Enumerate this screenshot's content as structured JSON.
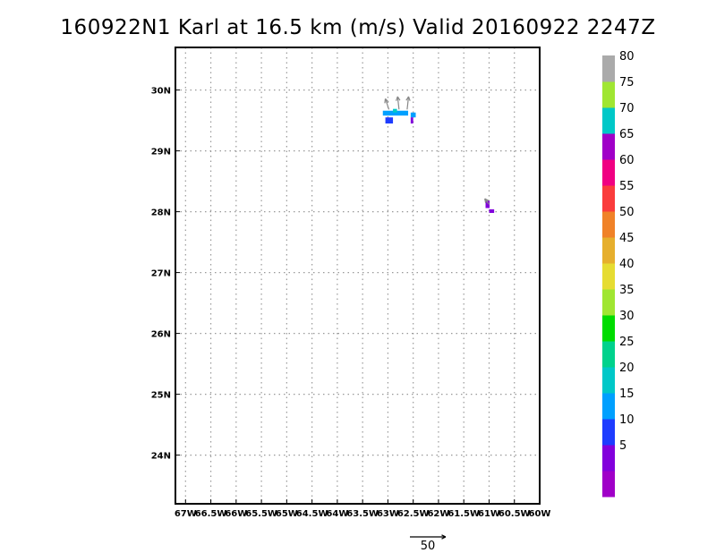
{
  "chart_data": {
    "type": "heatmap",
    "title": "160922N1 Karl at 16.5 km (m/s) Valid 20160922  2247Z",
    "xlim": [
      -67.2,
      -60.0
    ],
    "ylim": [
      23.2,
      30.7
    ],
    "x_ticks": [
      {
        "value": -67.0,
        "label": "67W"
      },
      {
        "value": -66.5,
        "label": "66.5W"
      },
      {
        "value": -66.0,
        "label": "66W"
      },
      {
        "value": -65.5,
        "label": "65.5W"
      },
      {
        "value": -65.0,
        "label": "65W"
      },
      {
        "value": -64.5,
        "label": "64.5W"
      },
      {
        "value": -64.0,
        "label": "64W"
      },
      {
        "value": -63.5,
        "label": "63.5W"
      },
      {
        "value": -63.0,
        "label": "63W"
      },
      {
        "value": -62.5,
        "label": "62.5W"
      },
      {
        "value": -62.0,
        "label": "62W"
      },
      {
        "value": -61.5,
        "label": "61.5W"
      },
      {
        "value": -61.0,
        "label": "61W"
      },
      {
        "value": -60.5,
        "label": "60.5W"
      },
      {
        "value": -60.0,
        "label": "60W"
      }
    ],
    "y_ticks": [
      {
        "value": 24,
        "label": "24N"
      },
      {
        "value": 25,
        "label": "25N"
      },
      {
        "value": 26,
        "label": "26N"
      },
      {
        "value": 27,
        "label": "27N"
      },
      {
        "value": 28,
        "label": "28N"
      },
      {
        "value": 29,
        "label": "29N"
      },
      {
        "value": 30,
        "label": "30N"
      }
    ],
    "grid": true,
    "cells": [
      {
        "lon": -63.1,
        "lat": 29.58,
        "w": 0.5,
        "h": 0.08,
        "value": 17
      },
      {
        "lon": -62.55,
        "lat": 29.55,
        "w": 0.1,
        "h": 0.08,
        "value": 17
      },
      {
        "lon": -63.05,
        "lat": 29.45,
        "w": 0.15,
        "h": 0.1,
        "value": 12
      },
      {
        "lon": -62.9,
        "lat": 29.63,
        "w": 0.08,
        "h": 0.06,
        "value": 22
      },
      {
        "lon": -62.55,
        "lat": 29.45,
        "w": 0.05,
        "h": 0.1,
        "value": 7
      },
      {
        "lon": -61.07,
        "lat": 28.06,
        "w": 0.08,
        "h": 0.12,
        "value": 7
      },
      {
        "lon": -61.0,
        "lat": 27.98,
        "w": 0.1,
        "h": 0.06,
        "value": 7
      }
    ],
    "vectors": [
      {
        "lon": -62.98,
        "lat": 29.68,
        "u": -5,
        "v": 15
      },
      {
        "lon": -62.78,
        "lat": 29.68,
        "u": -2,
        "v": 18
      },
      {
        "lon": -62.62,
        "lat": 29.68,
        "u": 2,
        "v": 18
      },
      {
        "lon": -61.0,
        "lat": 28.12,
        "u": -6,
        "v": 8
      }
    ],
    "colorbar": {
      "bins": [
        {
          "color": "#a000c8"
        },
        {
          "color": "#8200dc"
        },
        {
          "color": "#1e3cff",
          "label": "5"
        },
        {
          "color": "#00a0ff",
          "label": "10"
        },
        {
          "color": "#00c8c8",
          "label": "15"
        },
        {
          "color": "#00d28c",
          "label": "20"
        },
        {
          "color": "#00dc00",
          "label": "25"
        },
        {
          "color": "#a0e632",
          "label": "30"
        },
        {
          "color": "#e6dc32",
          "label": "35"
        },
        {
          "color": "#e6af2d",
          "label": "40"
        },
        {
          "color": "#f08228",
          "label": "45"
        },
        {
          "color": "#fa3c3c",
          "label": "50"
        },
        {
          "color": "#f00082",
          "label": "55"
        },
        {
          "color": "#a000c8",
          "label": "60"
        },
        {
          "color": "#00c8c8",
          "label": "65"
        },
        {
          "color": "#a0e632",
          "label": "70"
        },
        {
          "color": "#aaaaaa",
          "label": "75"
        },
        {
          "label": "80"
        }
      ],
      "value_colors": [
        {
          "max": 5,
          "color": "#a000c8"
        },
        {
          "max": 10,
          "color": "#8200dc"
        },
        {
          "max": 15,
          "color": "#1e3cff"
        },
        {
          "max": 20,
          "color": "#00a0ff"
        },
        {
          "max": 25,
          "color": "#00c8c8"
        },
        {
          "max": 999,
          "color": "#00d28c"
        }
      ]
    },
    "reference_vector": {
      "label": "50",
      "magnitude": 50
    }
  }
}
